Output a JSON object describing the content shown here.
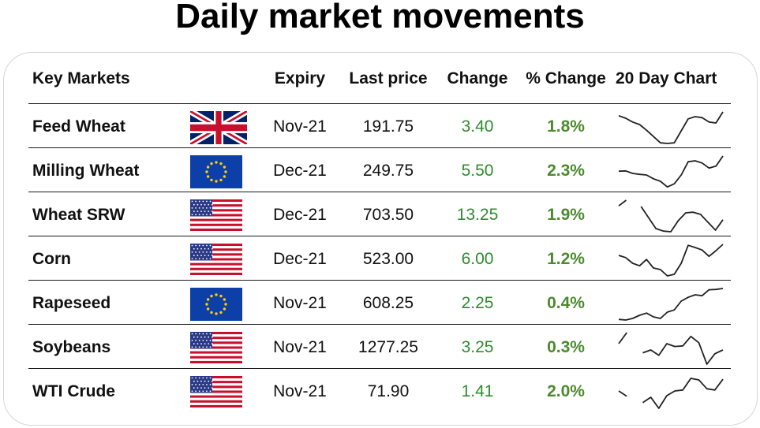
{
  "title": "Daily market movements",
  "headers": {
    "markets": "Key Markets",
    "expiry": "Expiry",
    "last_price": "Last price",
    "change": "Change",
    "pct_change": "% Change",
    "chart": "20 Day Chart"
  },
  "colors": {
    "change_text": "#2e8b2e",
    "pct_text": "#4b8a2e",
    "spark_line": "#222222"
  },
  "rows": [
    {
      "market": "Feed Wheat",
      "flag": "uk-flag",
      "expiry": "Nov-21",
      "last_price": "191.75",
      "change": "3.40",
      "pct_change": "1.8%",
      "spark": [
        0.88,
        0.8,
        0.68,
        0.6,
        0.42,
        0.22,
        0.02,
        0.0,
        0.02,
        0.4,
        0.78,
        0.85,
        0.82,
        0.68,
        0.65,
        1.0
      ]
    },
    {
      "market": "Milling Wheat",
      "flag": "eu-flag",
      "expiry": "Dec-21",
      "last_price": "249.75",
      "change": "5.50",
      "pct_change": "2.3%",
      "spark": [
        0.52,
        0.53,
        0.45,
        0.42,
        0.4,
        0.28,
        0.2,
        0.02,
        0.12,
        0.4,
        0.82,
        0.85,
        0.78,
        0.62,
        0.68,
        1.0
      ]
    },
    {
      "market": "Wheat SRW",
      "flag": "us-flag",
      "expiry": "Dec-21",
      "last_price": "703.50",
      "change": "13.25",
      "pct_change": "1.9%",
      "spark": [
        0.82,
        1.0,
        null,
        0.8,
        0.45,
        0.1,
        0.02,
        0.0,
        0.35,
        0.6,
        0.62,
        0.55,
        0.3,
        0.05,
        0.38
      ]
    },
    {
      "market": "Corn",
      "flag": "us-flag",
      "expiry": "Dec-21",
      "last_price": "523.00",
      "change": "6.00",
      "pct_change": "1.2%",
      "spark": [
        0.65,
        0.58,
        0.4,
        0.32,
        0.52,
        0.25,
        0.2,
        0.0,
        0.05,
        0.4,
        0.97,
        0.9,
        0.82,
        0.62,
        0.8,
        1.0
      ]
    },
    {
      "market": "Rapeseed",
      "flag": "eu-flag",
      "expiry": "Nov-21",
      "last_price": "608.25",
      "change": "2.25",
      "pct_change": "0.4%",
      "spark": [
        0.02,
        0.0,
        0.05,
        0.15,
        0.22,
        0.1,
        0.05,
        0.25,
        0.32,
        0.6,
        0.72,
        0.8,
        0.77,
        0.96,
        0.97,
        1.0
      ]
    },
    {
      "market": "Soybeans",
      "flag": "us-flag",
      "expiry": "Nov-21",
      "last_price": "1277.25",
      "change": "3.25",
      "pct_change": "0.3%",
      "spark": [
        0.65,
        1.0,
        null,
        0.36,
        0.45,
        0.28,
        0.65,
        0.56,
        0.58,
        0.88,
        0.68,
        0.0,
        0.33,
        0.45
      ]
    },
    {
      "market": "WTI Crude",
      "flag": "us-flag",
      "expiry": "Nov-21",
      "last_price": "71.90",
      "change": "1.41",
      "pct_change": "2.0%",
      "spark": [
        0.55,
        0.38,
        null,
        0.18,
        0.35,
        0.0,
        0.4,
        0.55,
        0.58,
        0.95,
        0.9,
        0.62,
        0.58,
        0.92
      ]
    }
  ],
  "chart_data": {
    "type": "table",
    "title": "Daily market movements",
    "columns": [
      "Key Markets",
      "Expiry",
      "Last price",
      "Change",
      "% Change",
      "20 Day Chart"
    ],
    "rows": [
      [
        "Feed Wheat",
        "Nov-21",
        191.75,
        3.4,
        "1.8%"
      ],
      [
        "Milling Wheat",
        "Dec-21",
        249.75,
        5.5,
        "2.3%"
      ],
      [
        "Wheat SRW",
        "Dec-21",
        703.5,
        13.25,
        "1.9%"
      ],
      [
        "Corn",
        "Dec-21",
        523.0,
        6.0,
        "1.2%"
      ],
      [
        "Rapeseed",
        "Nov-21",
        608.25,
        2.25,
        "0.4%"
      ],
      [
        "Soybeans",
        "Nov-21",
        1277.25,
        3.25,
        "0.3%"
      ],
      [
        "WTI Crude",
        "Nov-21",
        71.9,
        1.41,
        "2.0%"
      ]
    ]
  }
}
